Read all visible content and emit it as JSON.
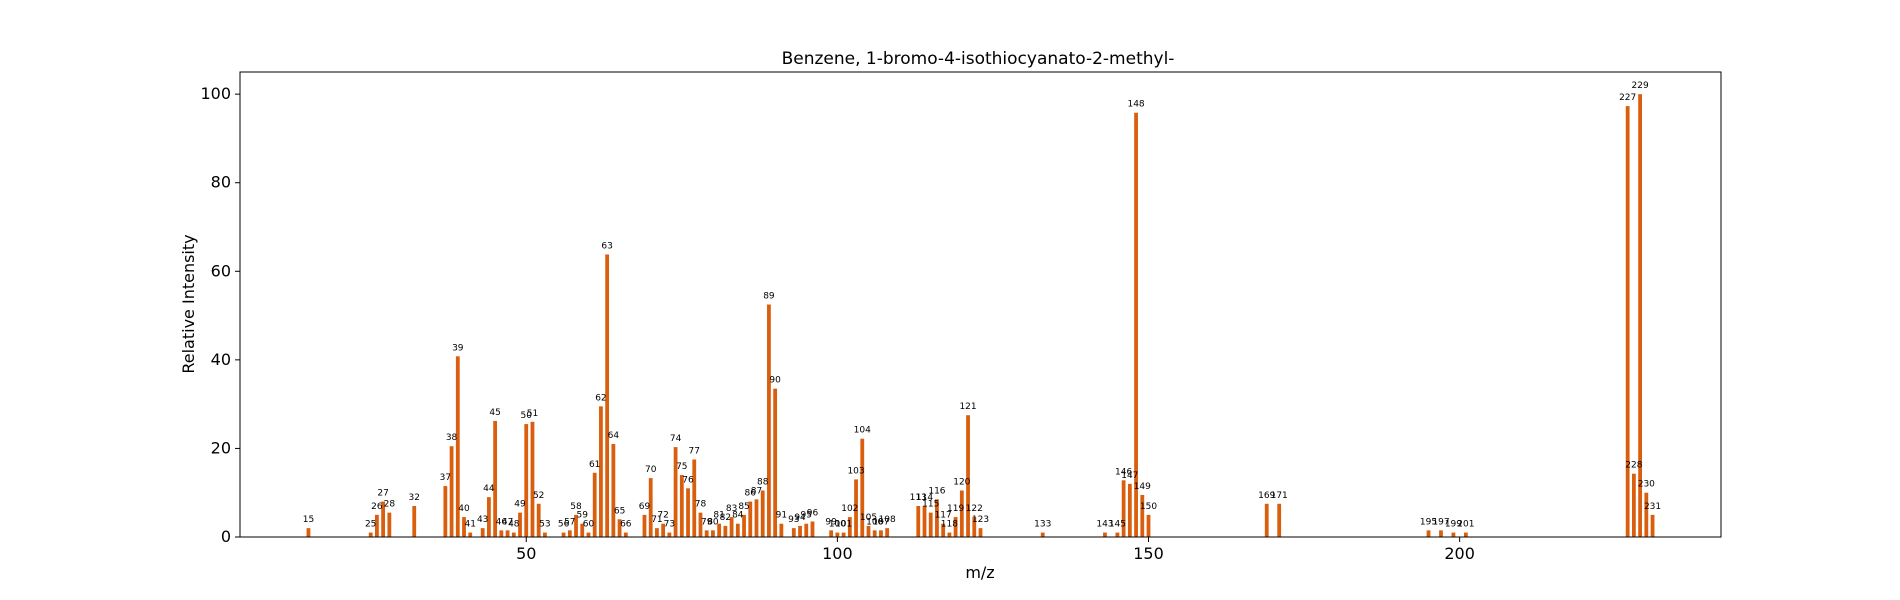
{
  "chart_data": {
    "type": "bar",
    "title": "Benzene, 1-bromo-4-isothiocyanato-2-methyl-",
    "xlabel": "m/z",
    "ylabel": "Relative Intensity",
    "xlim": [
      4,
      242
    ],
    "ylim": [
      0,
      105
    ],
    "xticks": [
      50,
      100,
      150,
      200
    ],
    "yticks": [
      0,
      20,
      40,
      60,
      80,
      100
    ],
    "grid": false,
    "bar_color": "#d95f0e",
    "peaks": [
      {
        "mz": 15,
        "intensity": 2
      },
      {
        "mz": 25,
        "intensity": 1
      },
      {
        "mz": 26,
        "intensity": 5
      },
      {
        "mz": 27,
        "intensity": 8
      },
      {
        "mz": 28,
        "intensity": 5.5
      },
      {
        "mz": 32,
        "intensity": 7
      },
      {
        "mz": 37,
        "intensity": 11.5
      },
      {
        "mz": 38,
        "intensity": 20.5
      },
      {
        "mz": 39,
        "intensity": 40.8
      },
      {
        "mz": 40,
        "intensity": 4.5
      },
      {
        "mz": 41,
        "intensity": 1
      },
      {
        "mz": 43,
        "intensity": 2
      },
      {
        "mz": 44,
        "intensity": 9
      },
      {
        "mz": 45,
        "intensity": 26.2
      },
      {
        "mz": 46,
        "intensity": 1.5
      },
      {
        "mz": 47,
        "intensity": 1.5
      },
      {
        "mz": 48,
        "intensity": 1
      },
      {
        "mz": 49,
        "intensity": 5.5
      },
      {
        "mz": 50,
        "intensity": 25.5
      },
      {
        "mz": 51,
        "intensity": 26
      },
      {
        "mz": 52,
        "intensity": 7.5
      },
      {
        "mz": 53,
        "intensity": 1
      },
      {
        "mz": 56,
        "intensity": 1
      },
      {
        "mz": 57,
        "intensity": 1.5
      },
      {
        "mz": 58,
        "intensity": 5
      },
      {
        "mz": 59,
        "intensity": 3
      },
      {
        "mz": 60,
        "intensity": 1
      },
      {
        "mz": 61,
        "intensity": 14.5
      },
      {
        "mz": 62,
        "intensity": 29.5
      },
      {
        "mz": 63,
        "intensity": 63.8
      },
      {
        "mz": 64,
        "intensity": 21
      },
      {
        "mz": 65,
        "intensity": 4
      },
      {
        "mz": 66,
        "intensity": 1
      },
      {
        "mz": 69,
        "intensity": 5
      },
      {
        "mz": 70,
        "intensity": 13.3
      },
      {
        "mz": 71,
        "intensity": 2
      },
      {
        "mz": 72,
        "intensity": 3
      },
      {
        "mz": 73,
        "intensity": 1
      },
      {
        "mz": 74,
        "intensity": 20.3
      },
      {
        "mz": 75,
        "intensity": 14
      },
      {
        "mz": 76,
        "intensity": 11
      },
      {
        "mz": 77,
        "intensity": 17.5
      },
      {
        "mz": 78,
        "intensity": 5.5
      },
      {
        "mz": 79,
        "intensity": 1.5
      },
      {
        "mz": 80,
        "intensity": 1.5
      },
      {
        "mz": 81,
        "intensity": 3
      },
      {
        "mz": 82,
        "intensity": 2.5
      },
      {
        "mz": 83,
        "intensity": 4.5
      },
      {
        "mz": 84,
        "intensity": 3
      },
      {
        "mz": 85,
        "intensity": 5
      },
      {
        "mz": 86,
        "intensity": 8
      },
      {
        "mz": 87,
        "intensity": 8.5
      },
      {
        "mz": 88,
        "intensity": 10.5
      },
      {
        "mz": 89,
        "intensity": 52.5
      },
      {
        "mz": 90,
        "intensity": 33.5
      },
      {
        "mz": 91,
        "intensity": 3
      },
      {
        "mz": 93,
        "intensity": 2
      },
      {
        "mz": 94,
        "intensity": 2.5
      },
      {
        "mz": 95,
        "intensity": 3
      },
      {
        "mz": 96,
        "intensity": 3.5
      },
      {
        "mz": 99,
        "intensity": 1.5
      },
      {
        "mz": 100,
        "intensity": 1
      },
      {
        "mz": 101,
        "intensity": 1
      },
      {
        "mz": 102,
        "intensity": 4.5
      },
      {
        "mz": 103,
        "intensity": 13
      },
      {
        "mz": 104,
        "intensity": 22.2
      },
      {
        "mz": 105,
        "intensity": 2.5
      },
      {
        "mz": 106,
        "intensity": 1.5
      },
      {
        "mz": 107,
        "intensity": 1.5
      },
      {
        "mz": 108,
        "intensity": 2
      },
      {
        "mz": 113,
        "intensity": 7
      },
      {
        "mz": 114,
        "intensity": 7
      },
      {
        "mz": 115,
        "intensity": 5.5
      },
      {
        "mz": 116,
        "intensity": 8.5
      },
      {
        "mz": 117,
        "intensity": 3
      },
      {
        "mz": 118,
        "intensity": 1
      },
      {
        "mz": 119,
        "intensity": 4.5
      },
      {
        "mz": 120,
        "intensity": 10.5
      },
      {
        "mz": 121,
        "intensity": 27.5
      },
      {
        "mz": 122,
        "intensity": 4.5
      },
      {
        "mz": 123,
        "intensity": 2
      },
      {
        "mz": 133,
        "intensity": 1
      },
      {
        "mz": 143,
        "intensity": 1
      },
      {
        "mz": 145,
        "intensity": 1
      },
      {
        "mz": 146,
        "intensity": 12.8
      },
      {
        "mz": 147,
        "intensity": 12
      },
      {
        "mz": 148,
        "intensity": 95.8
      },
      {
        "mz": 149,
        "intensity": 9.5
      },
      {
        "mz": 150,
        "intensity": 5
      },
      {
        "mz": 169,
        "intensity": 7.5
      },
      {
        "mz": 171,
        "intensity": 7.5
      },
      {
        "mz": 195,
        "intensity": 1.5
      },
      {
        "mz": 197,
        "intensity": 1.5
      },
      {
        "mz": 199,
        "intensity": 1
      },
      {
        "mz": 201,
        "intensity": 1
      },
      {
        "mz": 227,
        "intensity": 97.3
      },
      {
        "mz": 228,
        "intensity": 14.3
      },
      {
        "mz": 229,
        "intensity": 100
      },
      {
        "mz": 230,
        "intensity": 10
      },
      {
        "mz": 231,
        "intensity": 5
      }
    ]
  }
}
